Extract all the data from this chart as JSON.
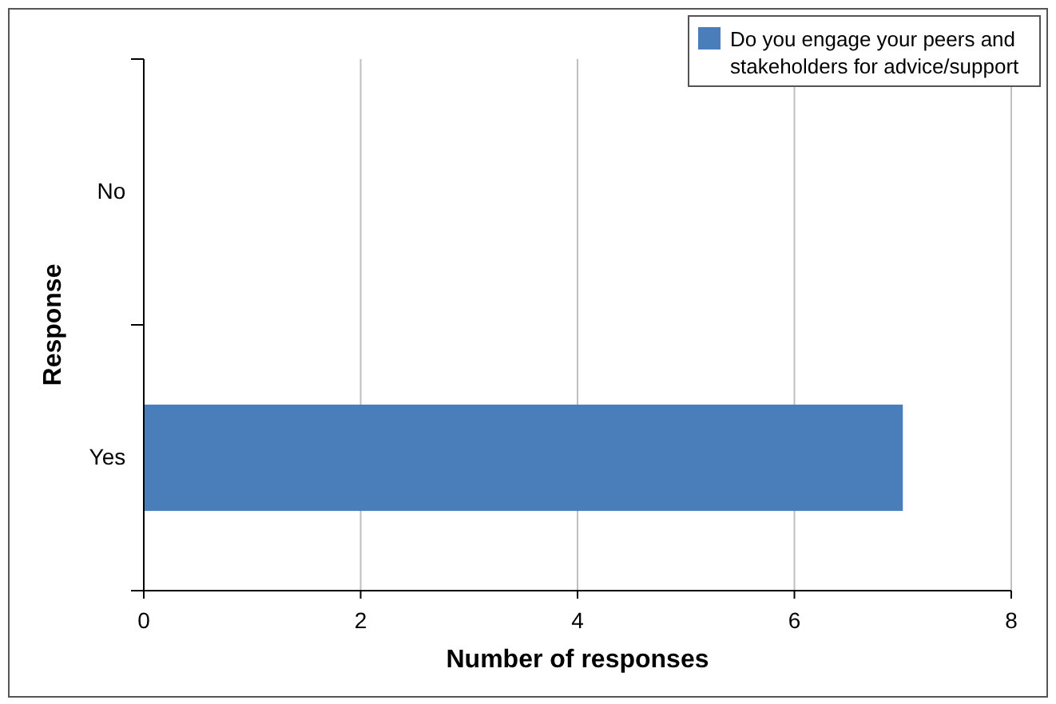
{
  "chart_data": {
    "type": "bar",
    "orientation": "horizontal",
    "categories": [
      "No",
      "Yes"
    ],
    "series": [
      {
        "name": "Do you engage your peers and stakeholders for advice/support",
        "color": "#4a7ebb",
        "values": [
          0,
          7
        ]
      }
    ],
    "xlabel": "Number of responses",
    "ylabel": "Response",
    "xlim": [
      0,
      8
    ],
    "xticks": [
      0,
      2,
      4,
      6,
      8
    ],
    "grid": "x",
    "legend": "top right"
  }
}
